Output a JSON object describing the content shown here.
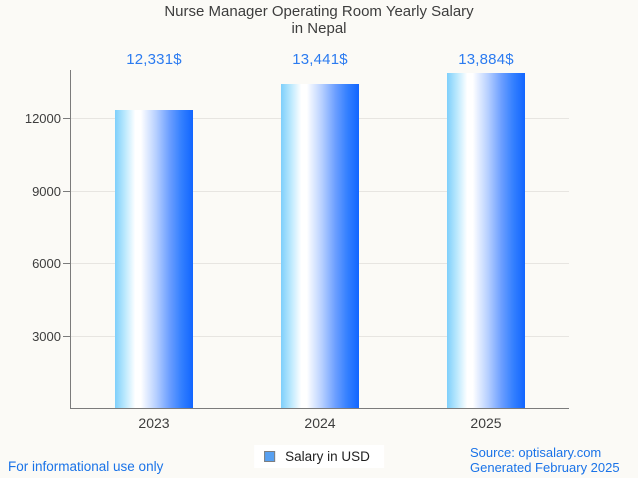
{
  "title": {
    "line1": "Nurse Manager Operating Room Yearly Salary",
    "line2": "in Nepal"
  },
  "chart_data": {
    "type": "bar",
    "title": "Nurse Manager Operating Room Yearly Salary in Nepal",
    "categories": [
      "2023",
      "2024",
      "2025"
    ],
    "values": [
      12331,
      13441,
      13884
    ],
    "value_labels": [
      "12,331$",
      "13,441$",
      "13,884$"
    ],
    "series": [
      {
        "name": "Salary in USD",
        "values": [
          12331,
          13441,
          13884
        ]
      }
    ],
    "xlabel": "",
    "ylabel": "",
    "ylim": [
      0,
      14000
    ],
    "yticks": [
      3000,
      6000,
      9000,
      12000
    ],
    "grid": true,
    "legend_position": "bottom"
  },
  "legend": {
    "label": "Salary in USD"
  },
  "footer": {
    "disclaimer": "For informational use only",
    "source": "Source: optisalary.com",
    "generated": "Generated February 2025"
  },
  "colors": {
    "background": "#fbfaf6",
    "accent_blue": "#1a73e8",
    "value_label_blue": "#2b7bf0",
    "bar_gradient_left": "#7ecffb",
    "bar_gradient_mid": "#ffffff",
    "bar_gradient_right": "#1165ff",
    "legend_marker_fill": "#57a0f1",
    "legend_marker_border": "#7e7e7e",
    "axis_gray": "#7b7b7b",
    "gridline_gray": "#e7e5e1",
    "text_dark": "#3d3d3d"
  }
}
